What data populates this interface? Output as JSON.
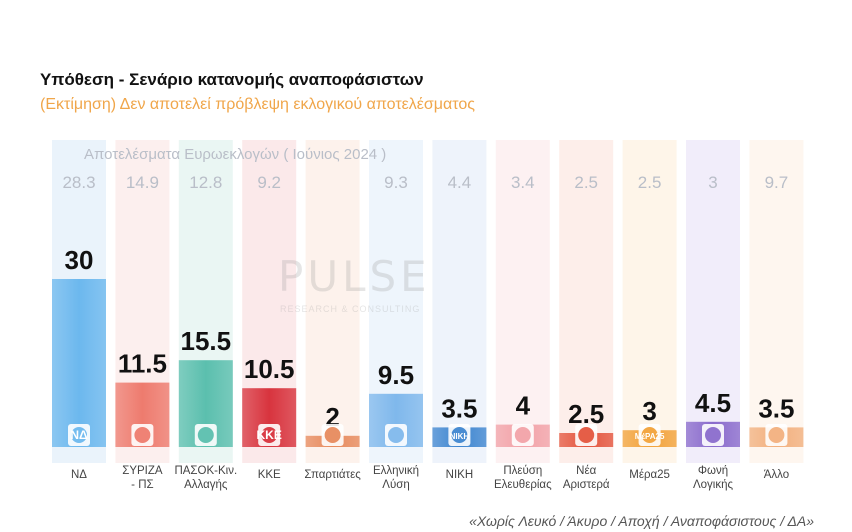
{
  "title": "Υπόθεση - Σενάριο κατανομής αναποφάσιστων",
  "subtitle": "(Εκτίμηση)   Δεν αποτελεί πρόβλεψη εκλογικού αποτελέσματος",
  "euro_caption": "Αποτελέσματα Ευρωεκλογών  ( Ιούνιος 2024 )",
  "watermark": {
    "name": "PULSE",
    "tagline": "RESEARCH & CONSULTING"
  },
  "footer": "«Χωρίς Λευκό / Άκυρο / Αποχή / Αναποφάσιστους / ΔΑ»",
  "chart_data": {
    "type": "bar",
    "categories": [
      "ΝΔ",
      "ΣΥΡΙΖΑ\n- ΠΣ",
      "ΠΑΣΟΚ-Κιν.\nΑλλαγής",
      "ΚΚΕ",
      "Σπαρτιάτες",
      "Ελληνική\nΛύση",
      "ΝΙΚΗ",
      "Πλεύση\nΕλευθερίας",
      "Νέα\nΑριστερά",
      "Μέρα25",
      "Φωνή\nΛογικής",
      "Άλλο"
    ],
    "values": [
      30,
      11.5,
      15.5,
      10.5,
      2,
      9.5,
      3.5,
      4,
      2.5,
      3,
      4.5,
      3.5
    ],
    "value_labels": [
      "30",
      "11.5",
      "15.5",
      "10.5",
      "2",
      "9.5",
      "3.5",
      "4",
      "2.5",
      "3",
      "4.5",
      "3.5"
    ],
    "euro_results": [
      28.3,
      14.9,
      12.8,
      9.2,
      null,
      9.3,
      4.4,
      3.4,
      2.5,
      2.5,
      3,
      9.7
    ],
    "euro_labels": [
      "28.3",
      "14.9",
      "12.8",
      "9.2",
      "",
      "9.3",
      "4.4",
      "3.4",
      "2.5",
      "2.5",
      "3",
      "9.7"
    ],
    "logos": [
      "ΝΔ",
      "",
      "",
      "ΚΚΕ",
      "",
      "",
      "ΝΙΚΗ",
      "",
      "",
      "ΜέΡΑ25",
      "",
      ""
    ],
    "colors": [
      "#6cb8ee",
      "#ee7b6e",
      "#5bbfae",
      "#d8343e",
      "#e78a5d",
      "#7fb8ec",
      "#3f86d0",
      "#f2a2a8",
      "#e4553e",
      "#f2a23a",
      "#8a6bcc",
      "#f2b07e"
    ],
    "bg_colors": [
      "#eaf3fb",
      "#fcefee",
      "#eaf6f3",
      "#fbe9ea",
      "#fdf2ec",
      "#eef5fc",
      "#eef3fb",
      "#fdf1f2",
      "#fdeeea",
      "#fef5e9",
      "#f1edfa",
      "#fef6ef"
    ],
    "xlabel": "",
    "ylabel": "",
    "ylim": [
      0,
      30
    ]
  }
}
